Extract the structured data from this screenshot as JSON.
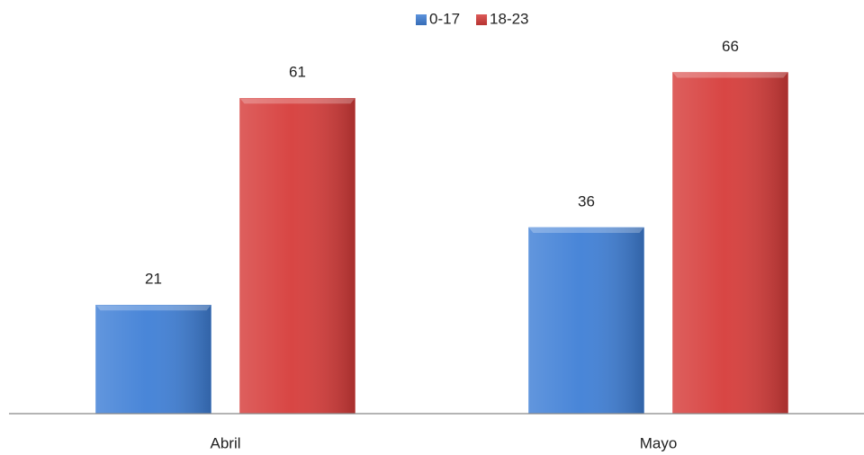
{
  "chart_data": {
    "type": "bar",
    "categories": [
      "Abril",
      "Mayo"
    ],
    "series": [
      {
        "name": "0-17",
        "color": "#3f7fd6",
        "values": [
          21,
          36
        ]
      },
      {
        "name": "18-23",
        "color": "#d63c3a",
        "values": [
          61,
          66
        ]
      }
    ],
    "ylim": [
      0,
      80
    ],
    "grid": false,
    "legend": "top"
  }
}
